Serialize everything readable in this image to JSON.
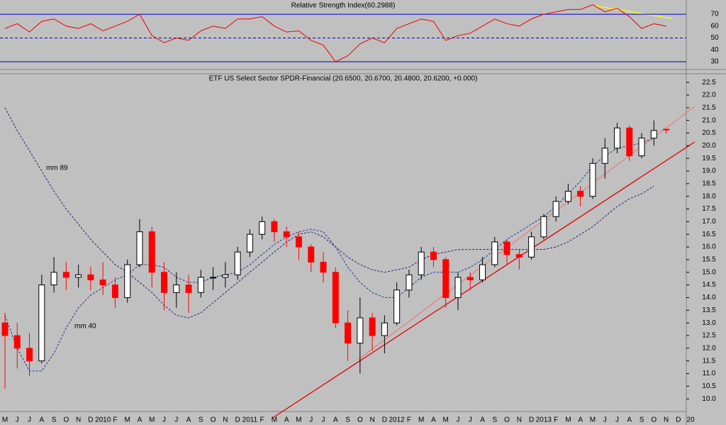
{
  "chart_data": [
    {
      "type": "line",
      "title": "Relative Strength Index(60.2988)",
      "color": "#ee0000",
      "values": [
        58,
        62,
        55,
        64,
        66,
        60,
        58,
        62,
        56,
        60,
        64,
        70,
        52,
        46,
        50,
        48,
        56,
        60,
        58,
        66,
        66,
        68,
        60,
        55,
        56,
        48,
        44,
        30,
        35,
        45,
        50,
        46,
        58,
        62,
        66,
        64,
        48,
        52,
        54,
        60,
        66,
        62,
        60,
        66,
        70,
        72,
        74,
        74,
        78,
        72,
        75,
        68,
        58,
        62,
        60,
        null,
        null
      ],
      "ylim": [
        24,
        82
      ],
      "yticks": [
        30,
        40,
        50,
        60,
        70
      ],
      "solid_levels": [
        30,
        70
      ],
      "dashed_levels": [
        50
      ],
      "level_color": "#0000cc"
    },
    {
      "type": "candlestick",
      "title": "ETF US Select Sector SPDR-Financial (20.6500, 20.6700, 20.4800, 20.6200, +0.000)",
      "categories": [
        "M",
        "J",
        "J",
        "A",
        "S",
        "O",
        "N",
        "D",
        "2010",
        "F",
        "M",
        "A",
        "M",
        "J",
        "J",
        "A",
        "S",
        "O",
        "N",
        "D",
        "2011",
        "F",
        "M",
        "A",
        "M",
        "J",
        "J",
        "A",
        "S",
        "O",
        "N",
        "D",
        "2012",
        "F",
        "M",
        "A",
        "M",
        "J",
        "J",
        "A",
        "S",
        "O",
        "N",
        "D",
        "2013",
        "F",
        "M",
        "A",
        "M",
        "J",
        "J",
        "A",
        "S",
        "O",
        "N",
        "D",
        "20"
      ],
      "open": [
        13.0,
        12.5,
        12.0,
        11.5,
        14.5,
        15.0,
        14.8,
        14.9,
        14.7,
        14.5,
        14.0,
        15.3,
        16.6,
        15.0,
        14.2,
        14.5,
        14.2,
        14.8,
        14.8,
        14.9,
        15.8,
        16.5,
        17.0,
        16.6,
        16.4,
        16.0,
        15.4,
        15.0,
        13.0,
        12.2,
        13.2,
        12.5,
        13.0,
        14.3,
        14.9,
        15.8,
        15.5,
        14.0,
        14.8,
        14.7,
        15.3,
        16.2,
        15.7,
        15.6,
        16.4,
        17.2,
        17.8,
        18.2,
        18.0,
        19.3,
        19.9,
        20.7,
        19.6,
        20.3,
        20.65,
        null,
        null
      ],
      "high": [
        13.4,
        13.0,
        12.6,
        14.9,
        15.6,
        15.4,
        15.3,
        15.2,
        15.4,
        14.8,
        15.5,
        17.1,
        16.8,
        15.4,
        15.0,
        14.9,
        15.1,
        15.2,
        15.4,
        16.0,
        16.7,
        17.2,
        17.1,
        16.8,
        16.6,
        16.1,
        15.8,
        15.2,
        13.5,
        14.0,
        13.4,
        13.3,
        14.6,
        15.1,
        16.0,
        16.0,
        15.6,
        15.0,
        15.0,
        15.6,
        16.4,
        16.3,
        15.9,
        16.6,
        17.3,
        18.0,
        18.5,
        18.4,
        19.5,
        20.3,
        20.9,
        20.8,
        20.5,
        21.0,
        20.67,
        null,
        null
      ],
      "low": [
        10.4,
        11.2,
        10.9,
        11.4,
        14.2,
        14.3,
        14.4,
        14.3,
        14.1,
        13.6,
        13.8,
        15.2,
        14.4,
        13.5,
        13.6,
        13.4,
        14.0,
        14.3,
        14.4,
        14.7,
        15.6,
        16.3,
        16.2,
        16.0,
        15.5,
        15.0,
        14.6,
        12.8,
        11.5,
        11.0,
        11.9,
        11.8,
        12.9,
        14.0,
        14.7,
        15.2,
        13.6,
        13.5,
        14.3,
        14.6,
        15.2,
        15.3,
        15.1,
        15.5,
        16.3,
        17.0,
        17.7,
        17.6,
        17.9,
        18.7,
        19.7,
        19.4,
        19.5,
        20.0,
        20.48,
        null,
        null
      ],
      "close": [
        12.5,
        12.0,
        11.5,
        14.5,
        15.0,
        14.8,
        14.9,
        14.7,
        14.5,
        14.0,
        15.3,
        16.6,
        15.0,
        14.2,
        14.5,
        14.2,
        14.8,
        14.8,
        14.9,
        15.8,
        16.5,
        17.0,
        16.6,
        16.4,
        16.0,
        15.4,
        15.0,
        13.0,
        12.2,
        13.2,
        12.5,
        13.0,
        14.3,
        14.9,
        15.8,
        15.5,
        14.0,
        14.8,
        14.7,
        15.3,
        16.2,
        15.7,
        15.6,
        16.4,
        17.2,
        17.8,
        18.2,
        18.0,
        19.3,
        19.9,
        20.7,
        19.6,
        20.3,
        20.6,
        20.62,
        null,
        null
      ],
      "up_color": "#ffffff",
      "down_color": "#ff0000",
      "series": [
        {
          "name": "mm 40",
          "color": "#1a3a9a",
          "values": [
            13.3,
            12.0,
            11.1,
            11.1,
            11.8,
            12.8,
            13.6,
            14.1,
            14.4,
            14.7,
            14.9,
            15.3,
            15.3,
            15.2,
            14.8,
            14.6,
            14.6,
            14.8,
            14.9,
            15.0,
            15.3,
            15.7,
            16.1,
            16.4,
            16.6,
            16.7,
            16.6,
            16.0,
            15.2,
            14.6,
            14.2,
            14.0,
            14.0,
            14.4,
            14.8,
            15.0,
            15.0,
            15.0,
            15.2,
            15.5,
            15.9,
            16.3,
            16.6,
            16.9,
            17.2,
            17.6,
            18.1,
            18.6,
            19.2,
            19.6,
            19.9,
            20.0,
            20.1,
            20.3,
            null,
            null,
            null
          ]
        },
        {
          "name": "mm 89",
          "color": "#3a1a7a",
          "values": [
            21.5,
            20.6,
            19.8,
            19.0,
            18.2,
            17.5,
            16.9,
            16.3,
            15.8,
            15.3,
            15.0,
            14.6,
            14.2,
            13.7,
            13.3,
            13.2,
            13.4,
            13.8,
            14.2,
            14.6,
            15.0,
            15.4,
            15.8,
            16.2,
            16.5,
            16.6,
            16.4,
            16.0,
            15.6,
            15.3,
            15.1,
            15.0,
            15.1,
            15.2,
            15.5,
            15.7,
            15.8,
            15.9,
            15.9,
            15.9,
            15.9,
            15.9,
            15.9,
            15.9,
            15.9,
            16.0,
            16.2,
            16.5,
            16.8,
            17.2,
            17.6,
            17.9,
            18.1,
            18.4,
            null,
            null,
            null
          ]
        }
      ],
      "ylim": [
        9.22,
        22.84
      ],
      "yticks": [
        {
          "value": 10,
          "label": "10.0"
        },
        10.5,
        {
          "value": 11,
          "label": "11.0"
        },
        11.5,
        {
          "value": 12,
          "label": "12.0"
        },
        12.5,
        {
          "value": 13,
          "label": "13.0"
        },
        13.5,
        {
          "value": 14,
          "label": "14.0"
        },
        14.5,
        {
          "value": 15,
          "label": "15.0"
        },
        15.5,
        {
          "value": 16,
          "label": "16.0"
        },
        16.5,
        {
          "value": 17,
          "label": "17.0"
        },
        17.5,
        {
          "value": 18,
          "label": "18.0"
        },
        18.5,
        {
          "value": 19,
          "label": "19.0"
        },
        19.5,
        {
          "value": 20,
          "label": "20.0"
        },
        20.5,
        {
          "value": 21,
          "label": "21.0"
        },
        21.5,
        {
          "value": 22,
          "label": "22.0"
        },
        22.5
      ]
    }
  ]
}
